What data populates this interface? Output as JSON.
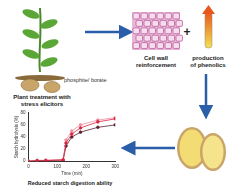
{
  "plant_label": [
    "phosphite/ borate"
  ],
  "treatment_label": [
    "Plant treatment with",
    "stress elicitors"
  ],
  "cell_wall_label": [
    "Cell wall",
    "reinforcement"
  ],
  "plus": "+",
  "phenolics_label": [
    "production",
    "of phenolics"
  ],
  "result_label": [
    "Reduced starch digestion ability"
  ],
  "chart_data": {
    "type": "line",
    "x_label": "Time (min)",
    "y_label": "Starch hydrolysis (%)",
    "x": [
      0,
      30,
      60,
      120,
      130,
      150,
      180,
      240,
      300
    ],
    "series": [
      {
        "color": "#d7263d",
        "marker": "circle",
        "values": [
          0,
          1,
          1,
          2,
          30,
          45,
          55,
          65,
          70
        ]
      },
      {
        "color": "#f08ca0",
        "marker": "circle",
        "values": [
          0,
          1,
          2,
          3,
          35,
          50,
          60,
          68,
          72
        ]
      },
      {
        "color": "#5a2030",
        "marker": "circle",
        "values": [
          0,
          1,
          1,
          2,
          25,
          40,
          48,
          56,
          60
        ]
      }
    ],
    "xlim": [
      0,
      300
    ],
    "xticks": [
      0,
      100,
      200,
      300
    ],
    "ylim": [
      0,
      80
    ],
    "yticks": [
      0,
      20,
      40,
      60,
      80
    ],
    "grid": false
  }
}
